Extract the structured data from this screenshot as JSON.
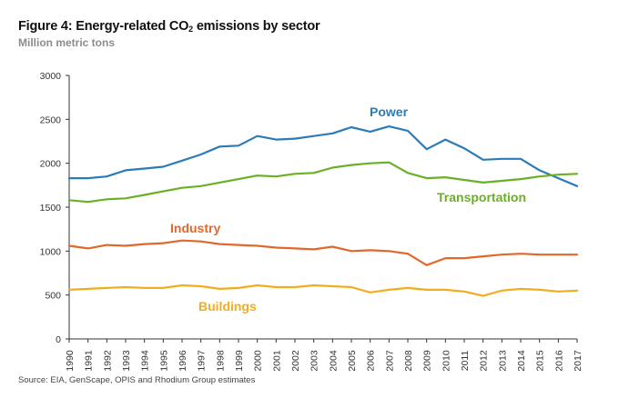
{
  "chart_data": {
    "type": "line",
    "title_prefix": "Figure 4: Energy-related CO",
    "title_sub": "2",
    "title_suffix": " emissions by sector",
    "subtitle": "Million metric tons",
    "source": "Source: EIA, GenScape, OPIS and Rhodium Group estimates",
    "ylim": [
      0,
      3000
    ],
    "yticks": [
      0,
      500,
      1000,
      1500,
      2000,
      2500,
      3000
    ],
    "x": [
      "1990",
      "1991",
      "1992",
      "1993",
      "1994",
      "1995",
      "1996",
      "1997",
      "1998",
      "1999",
      "2000",
      "2001",
      "2002",
      "2003",
      "2004",
      "2005",
      "2006",
      "2007",
      "2008",
      "2009",
      "2010",
      "2011",
      "2012",
      "2013",
      "2014",
      "2015",
      "2016",
      "2017"
    ],
    "grid": false,
    "series": [
      {
        "name": "Power",
        "color": "#2c7bb6",
        "values": [
          1830,
          1830,
          1850,
          1920,
          1940,
          1960,
          2030,
          2100,
          2190,
          2200,
          2310,
          2270,
          2280,
          2310,
          2340,
          2410,
          2360,
          2420,
          2370,
          2160,
          2270,
          2170,
          2040,
          2050,
          2050,
          1920,
          1830,
          1740
        ]
      },
      {
        "name": "Transportation",
        "color": "#6ab023",
        "values": [
          1580,
          1560,
          1590,
          1600,
          1640,
          1680,
          1720,
          1740,
          1780,
          1820,
          1860,
          1850,
          1880,
          1890,
          1950,
          1980,
          2000,
          2010,
          1890,
          1830,
          1840,
          1810,
          1780,
          1800,
          1820,
          1850,
          1870,
          1880
        ]
      },
      {
        "name": "Industry",
        "color": "#e2672a",
        "values": [
          1060,
          1030,
          1070,
          1060,
          1080,
          1090,
          1120,
          1110,
          1080,
          1070,
          1060,
          1040,
          1030,
          1020,
          1050,
          1000,
          1010,
          1000,
          970,
          840,
          920,
          920,
          940,
          960,
          970,
          960,
          960,
          960
        ]
      },
      {
        "name": "Buildings",
        "color": "#f2ad1f",
        "values": [
          560,
          570,
          580,
          590,
          580,
          580,
          610,
          600,
          570,
          580,
          610,
          590,
          590,
          610,
          600,
          590,
          530,
          560,
          580,
          560,
          560,
          540,
          490,
          550,
          570,
          560,
          540,
          550
        ]
      }
    ]
  }
}
